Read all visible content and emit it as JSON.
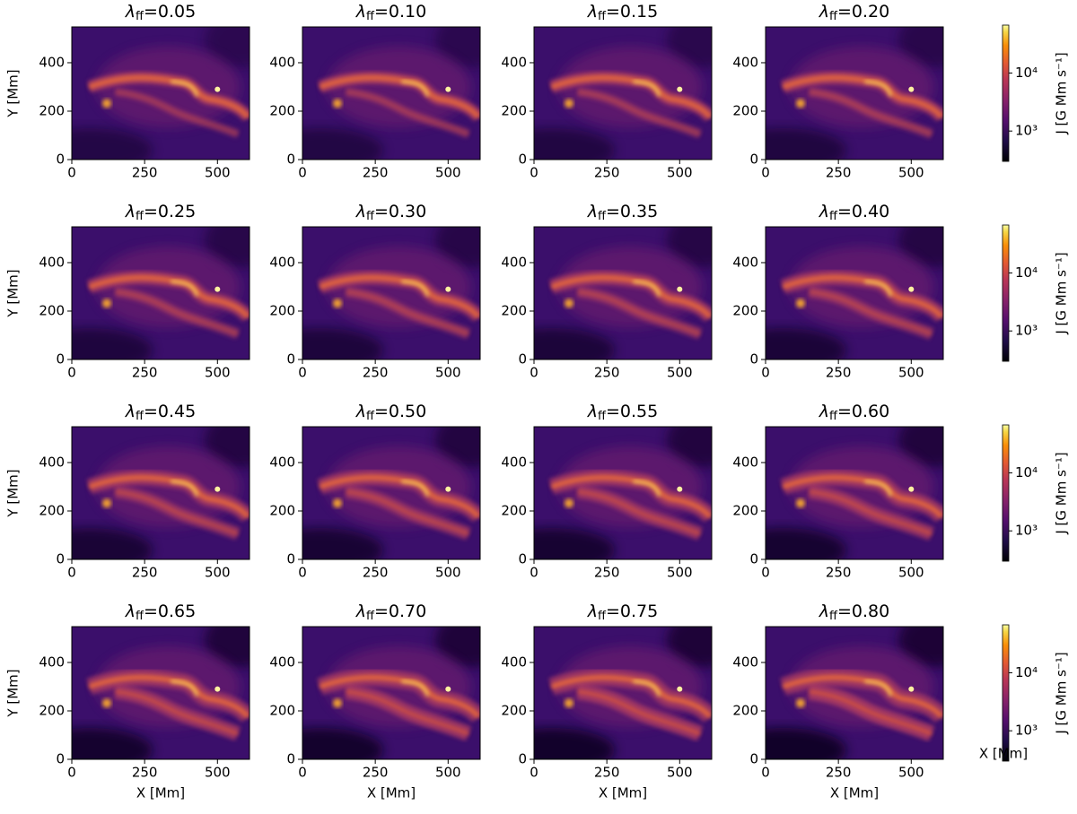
{
  "chart_data": [
    {
      "type": "image",
      "title": {
        "symbol": "λ",
        "subscript": "ff",
        "text": "=0.05"
      },
      "ylabel": "Y [Mm]",
      "xlim": [
        0,
        610
      ],
      "ylim": [
        0,
        548
      ],
      "xticks": [
        0,
        250,
        500
      ],
      "yticks": [
        0,
        200,
        400
      ]
    },
    {
      "type": "image",
      "title": {
        "symbol": "λ",
        "subscript": "ff",
        "text": "=0.10"
      },
      "xlim": [
        0,
        610
      ],
      "ylim": [
        0,
        548
      ],
      "xticks": [
        0,
        250,
        500
      ],
      "yticks": [
        0,
        200,
        400
      ]
    },
    {
      "type": "image",
      "title": {
        "symbol": "λ",
        "subscript": "ff",
        "text": "=0.15"
      },
      "xlim": [
        0,
        610
      ],
      "ylim": [
        0,
        548
      ],
      "xticks": [
        0,
        250,
        500
      ],
      "yticks": [
        0,
        200,
        400
      ]
    },
    {
      "type": "image",
      "title": {
        "symbol": "λ",
        "subscript": "ff",
        "text": "=0.20"
      },
      "xlim": [
        0,
        610
      ],
      "ylim": [
        0,
        548
      ],
      "xticks": [
        0,
        250,
        500
      ],
      "yticks": [
        0,
        200,
        400
      ]
    },
    {
      "type": "image",
      "title": {
        "symbol": "λ",
        "subscript": "ff",
        "text": "=0.25"
      },
      "ylabel": "Y [Mm]",
      "xlim": [
        0,
        610
      ],
      "ylim": [
        0,
        548
      ],
      "xticks": [
        0,
        250,
        500
      ],
      "yticks": [
        0,
        200,
        400
      ]
    },
    {
      "type": "image",
      "title": {
        "symbol": "λ",
        "subscript": "ff",
        "text": "=0.30"
      },
      "xlim": [
        0,
        610
      ],
      "ylim": [
        0,
        548
      ],
      "xticks": [
        0,
        250,
        500
      ],
      "yticks": [
        0,
        200,
        400
      ]
    },
    {
      "type": "image",
      "title": {
        "symbol": "λ",
        "subscript": "ff",
        "text": "=0.35"
      },
      "xlim": [
        0,
        610
      ],
      "ylim": [
        0,
        548
      ],
      "xticks": [
        0,
        250,
        500
      ],
      "yticks": [
        0,
        200,
        400
      ]
    },
    {
      "type": "image",
      "title": {
        "symbol": "λ",
        "subscript": "ff",
        "text": "=0.40"
      },
      "xlim": [
        0,
        610
      ],
      "ylim": [
        0,
        548
      ],
      "xticks": [
        0,
        250,
        500
      ],
      "yticks": [
        0,
        200,
        400
      ]
    },
    {
      "type": "image",
      "title": {
        "symbol": "λ",
        "subscript": "ff",
        "text": "=0.45"
      },
      "ylabel": "Y [Mm]",
      "xlim": [
        0,
        610
      ],
      "ylim": [
        0,
        548
      ],
      "xticks": [
        0,
        250,
        500
      ],
      "yticks": [
        0,
        200,
        400
      ]
    },
    {
      "type": "image",
      "title": {
        "symbol": "λ",
        "subscript": "ff",
        "text": "=0.50"
      },
      "xlim": [
        0,
        610
      ],
      "ylim": [
        0,
        548
      ],
      "xticks": [
        0,
        250,
        500
      ],
      "yticks": [
        0,
        200,
        400
      ]
    },
    {
      "type": "image",
      "title": {
        "symbol": "λ",
        "subscript": "ff",
        "text": "=0.55"
      },
      "xlim": [
        0,
        610
      ],
      "ylim": [
        0,
        548
      ],
      "xticks": [
        0,
        250,
        500
      ],
      "yticks": [
        0,
        200,
        400
      ]
    },
    {
      "type": "image",
      "title": {
        "symbol": "λ",
        "subscript": "ff",
        "text": "=0.60"
      },
      "xlim": [
        0,
        610
      ],
      "ylim": [
        0,
        548
      ],
      "xticks": [
        0,
        250,
        500
      ],
      "yticks": [
        0,
        200,
        400
      ]
    },
    {
      "type": "image",
      "title": {
        "symbol": "λ",
        "subscript": "ff",
        "text": "=0.65"
      },
      "ylabel": "Y [Mm]",
      "xlabel": "X [Mm]",
      "xlim": [
        0,
        610
      ],
      "ylim": [
        0,
        548
      ],
      "xticks": [
        0,
        250,
        500
      ],
      "yticks": [
        0,
        200,
        400
      ]
    },
    {
      "type": "image",
      "title": {
        "symbol": "λ",
        "subscript": "ff",
        "text": "=0.70"
      },
      "xlabel": "X [Mm]",
      "xlim": [
        0,
        610
      ],
      "ylim": [
        0,
        548
      ],
      "xticks": [
        0,
        250,
        500
      ],
      "yticks": [
        0,
        200,
        400
      ]
    },
    {
      "type": "image",
      "title": {
        "symbol": "λ",
        "subscript": "ff",
        "text": "=0.75"
      },
      "xlabel": "X [Mm]",
      "xlim": [
        0,
        610
      ],
      "ylim": [
        0,
        548
      ],
      "xticks": [
        0,
        250,
        500
      ],
      "yticks": [
        0,
        200,
        400
      ]
    },
    {
      "type": "image",
      "title": {
        "symbol": "λ",
        "subscript": "ff",
        "text": "=0.80"
      },
      "xlabel": "X [Mm]",
      "xlim": [
        0,
        610
      ],
      "ylim": [
        0,
        548
      ],
      "xticks": [
        0,
        250,
        500
      ],
      "yticks": [
        0,
        200,
        400
      ]
    },
    {
      "type": "colorbar",
      "label": "J [G Mm s⁻¹]",
      "log": true,
      "colormap": "inferno",
      "clim": [
        300,
        67000
      ],
      "ticks": [
        {
          "value": 1000,
          "label": "10³"
        },
        {
          "value": 10000,
          "label": "10⁴"
        }
      ]
    },
    {
      "type": "colorbar",
      "label": "J [G Mm s⁻¹]",
      "log": true,
      "colormap": "inferno",
      "clim": [
        300,
        67000
      ],
      "ticks": [
        {
          "value": 1000,
          "label": "10³"
        },
        {
          "value": 10000,
          "label": "10⁴"
        }
      ]
    },
    {
      "type": "colorbar",
      "label": "J [G Mm s⁻¹]",
      "log": true,
      "colormap": "inferno",
      "clim": [
        300,
        67000
      ],
      "ticks": [
        {
          "value": 1000,
          "label": "10³"
        },
        {
          "value": 10000,
          "label": "10⁴"
        }
      ]
    },
    {
      "type": "colorbar",
      "label": "J [G Mm s⁻¹]",
      "xlabel": "X [Mm]",
      "log": true,
      "colormap": "inferno",
      "clim": [
        300,
        67000
      ],
      "ticks": [
        {
          "value": 1000,
          "label": "10³"
        },
        {
          "value": 10000,
          "label": "10⁴"
        }
      ]
    }
  ]
}
